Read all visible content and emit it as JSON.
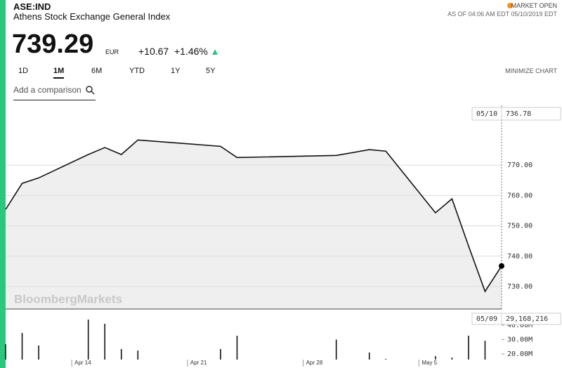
{
  "header": {
    "ticker": "ASE:IND",
    "name": "Athens Stock Exchange General Index",
    "status": "MARKET OPEN",
    "as_of": "AS OF 04:06 AM EDT 05/10/2019 EDT",
    "price": "739.29",
    "currency": "EUR",
    "change": "+10.67",
    "change_pct": "+1.46%"
  },
  "tabs": [
    "1D",
    "1M",
    "6M",
    "YTD",
    "1Y",
    "5Y"
  ],
  "active_tab": "1M",
  "minimize": "MINIMIZE CHART",
  "comparison_placeholder": "Add a comparison",
  "watermark": "BloombergMarkets",
  "chart_data": [
    {
      "type": "line",
      "cursor_label": "05/10",
      "color": "#111111",
      "fill": "#efefef",
      "x": [
        "Apr 10",
        "Apr 11",
        "Apr 12",
        "Apr 15",
        "Apr 16",
        "Apr 17",
        "Apr 18",
        "Apr 23",
        "Apr 24",
        "Apr 30",
        "May 2",
        "May 3",
        "May 6",
        "May 7",
        "May 8",
        "May 9",
        "May 10"
      ],
      "values": [
        755.4,
        764.0,
        765.8,
        773.5,
        775.8,
        773.5,
        778.3,
        776.2,
        772.5,
        773.2,
        775.1,
        774.6,
        754.3,
        758.9,
        743.4,
        728.4,
        736.78
      ],
      "xlim": [
        "Apr 10",
        "May 10"
      ],
      "xticks": [
        "Apr 14",
        "Apr 21",
        "Apr 28",
        "May 5"
      ],
      "ylim": [
        722.6,
        789.7
      ],
      "yticks": [
        {
          "value": 730,
          "label": "730.00"
        },
        {
          "value": 740,
          "label": "740.00"
        },
        {
          "value": 750,
          "label": "750.00"
        },
        {
          "value": 760,
          "label": "760.00"
        },
        {
          "value": 770,
          "label": "770.00"
        }
      ],
      "grid": true
    },
    {
      "type": "bar",
      "cursor_label": "05/09",
      "color": "#111111",
      "x": [
        "Apr 10",
        "Apr 11",
        "Apr 12",
        "Apr 15",
        "Apr 16",
        "Apr 17",
        "Apr 18",
        "Apr 23",
        "Apr 24",
        "Apr 30",
        "May 2",
        "May 3",
        "May 6",
        "May 7",
        "May 8",
        "May 9"
      ],
      "values": [
        26800000,
        34600000,
        25900000,
        43900000,
        41000000,
        23400000,
        22400000,
        23400000,
        32700000,
        30000000,
        21000000,
        16600000,
        18500000,
        17500000,
        32700000,
        29168216
      ],
      "value_labels": [
        null,
        null,
        null,
        null,
        null,
        null,
        null,
        null,
        null,
        null,
        null,
        null,
        null,
        null,
        null,
        "29,168,216"
      ],
      "xlim": [
        "Apr 10",
        "May 10"
      ],
      "ylim": [
        16100000,
        48800000
      ],
      "yticks": [
        {
          "value": 20000000,
          "label": "20.00M"
        },
        {
          "value": 30000000,
          "label": "30.00M"
        },
        {
          "value": 40000000,
          "label": "40.00M"
        }
      ]
    }
  ]
}
